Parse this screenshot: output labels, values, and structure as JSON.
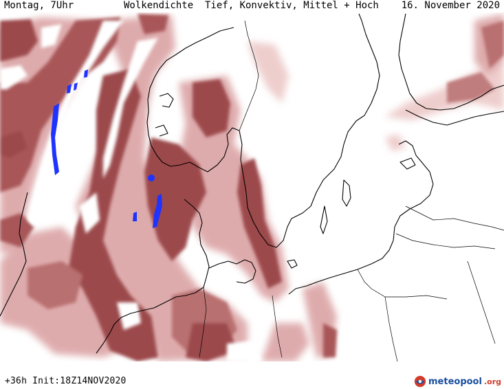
{
  "header": {
    "timestamp": "Montag, 7Uhr",
    "title": "Wolkendichte  Tief, Konvektiv, Mittel + Hoch",
    "date": "16. November 2020"
  },
  "footer": {
    "run_info": "+36h Init:18Z14NOV2020",
    "brand_name": "meteopool",
    "brand_tld": ".org"
  },
  "colors": {
    "cloud_dense": "#9c4a4c",
    "cloud_medium": "#b96f70",
    "cloud_light": "#dba3a4",
    "cloud_faint": "#ecc9c8",
    "precip": "#1f33ff",
    "coastline": "#000000",
    "brand_blue": "#1a4fa0",
    "brand_red": "#d23b2a"
  },
  "icons": {
    "brand_logo": "meteopool-logo-icon"
  }
}
